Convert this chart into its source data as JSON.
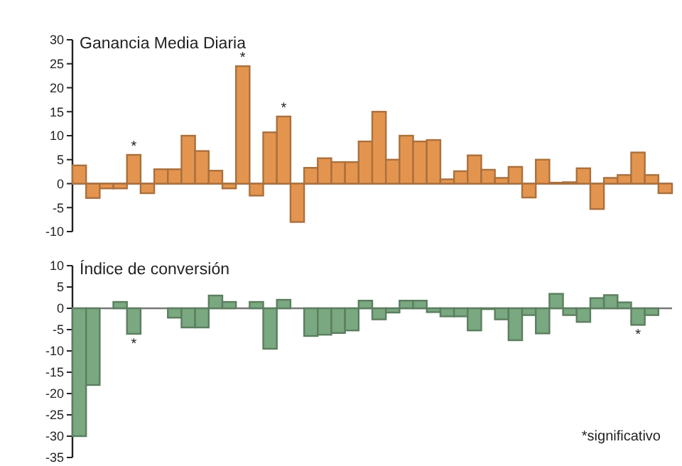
{
  "chart_data": [
    {
      "type": "bar",
      "title": "Ganancia Media Diaria",
      "categories": [
        null,
        null,
        null,
        null,
        null,
        null,
        null,
        null,
        null,
        null,
        null,
        null,
        null,
        null,
        null,
        null,
        null,
        null,
        null,
        null,
        null,
        null,
        null,
        null,
        null,
        null,
        null,
        null,
        null,
        null,
        null,
        null,
        null,
        null,
        null,
        null,
        null,
        null,
        null,
        null,
        null,
        null,
        null,
        null
      ],
      "values": [
        3.8,
        -3,
        -1,
        -1,
        6,
        -2,
        3,
        3,
        10,
        6.8,
        2.7,
        -1,
        24.5,
        -2.5,
        10.7,
        14,
        -8,
        3.3,
        5.3,
        4.5,
        4.5,
        8.8,
        15,
        5,
        10,
        8.8,
        9.1,
        0.9,
        2.6,
        5.9,
        2.9,
        1.2,
        3.5,
        -2.9,
        5,
        0.2,
        0.3,
        3.2,
        -5.3,
        1.2,
        1.8,
        6.5,
        1.8,
        -2
      ],
      "value_labels": [
        null,
        null,
        null,
        null,
        "*",
        null,
        null,
        null,
        null,
        null,
        null,
        null,
        "*",
        null,
        null,
        "*",
        null,
        null,
        null,
        null,
        null,
        null,
        null,
        null,
        null,
        null,
        null,
        null,
        null,
        null,
        null,
        null,
        null,
        null,
        null,
        null,
        null,
        null,
        null,
        null,
        null,
        null,
        null,
        null
      ],
      "color": "#e39550",
      "ylim": [
        -10,
        30
      ],
      "yticks": [
        -10,
        -5,
        0,
        5,
        10,
        15,
        20,
        25,
        30
      ],
      "tick_labels": "y"
    },
    {
      "type": "bar",
      "title": "Índice de conversión",
      "categories": [
        null,
        null,
        null,
        null,
        null,
        null,
        null,
        null,
        null,
        null,
        null,
        null,
        null,
        null,
        null,
        null,
        null,
        null,
        null,
        null,
        null,
        null,
        null,
        null,
        null,
        null,
        null,
        null,
        null,
        null,
        null,
        null,
        null,
        null,
        null,
        null,
        null,
        null,
        null,
        null,
        null,
        null,
        null,
        null
      ],
      "values": [
        -30,
        -18,
        0,
        1.5,
        -6,
        0,
        0,
        -2.2,
        -4.5,
        -4.5,
        3,
        1.5,
        0,
        1.5,
        -9.5,
        2,
        0,
        -6.5,
        -6.2,
        -5.8,
        -5.2,
        1.8,
        -2.6,
        -1,
        1.8,
        1.8,
        -0.9,
        -1.9,
        -1.9,
        -5.2,
        -0.2,
        -2.6,
        -7.5,
        -1.6,
        -5.9,
        3.4,
        -1.6,
        -3.2,
        2.4,
        3.1,
        1.4,
        -3.9,
        -1.6,
        0
      ],
      "value_labels": [
        null,
        null,
        null,
        null,
        "*",
        null,
        null,
        null,
        null,
        null,
        null,
        null,
        null,
        null,
        null,
        null,
        null,
        null,
        null,
        null,
        null,
        null,
        null,
        null,
        null,
        null,
        null,
        null,
        null,
        null,
        null,
        null,
        null,
        null,
        null,
        null,
        null,
        null,
        null,
        null,
        null,
        "*",
        null,
        null
      ],
      "color": "#7aa880",
      "ylim": [
        -35,
        10
      ],
      "yticks": [
        -35,
        -30,
        -25,
        -20,
        -15,
        -10,
        -5,
        0,
        5,
        10
      ],
      "tick_labels": "y",
      "annotations": [
        "*significativo"
      ]
    }
  ]
}
